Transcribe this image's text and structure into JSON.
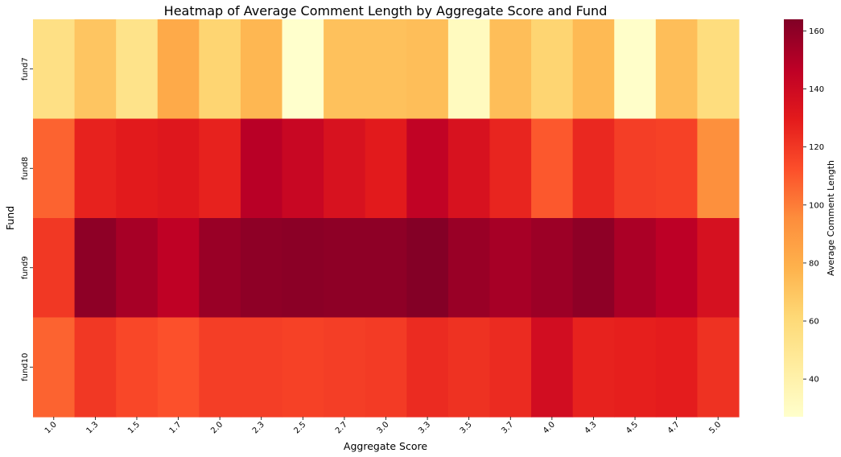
{
  "chart_data": {
    "type": "heatmap",
    "title": "Heatmap of Average Comment Length by Aggregate Score and Fund",
    "xlabel": "Aggregate Score",
    "ylabel": "Fund",
    "x_categories": [
      "1.0",
      "1.3",
      "1.5",
      "1.7",
      "2.0",
      "2.3",
      "2.5",
      "2.7",
      "3.0",
      "3.3",
      "3.5",
      "3.7",
      "4.0",
      "4.3",
      "4.5",
      "4.7",
      "5.0"
    ],
    "y_categories": [
      "fund7",
      "fund8",
      "fund9",
      "fund10"
    ],
    "values": [
      [
        55,
        70,
        53,
        82,
        63,
        76,
        27,
        72,
        72,
        73,
        32,
        73,
        63,
        75,
        28,
        73,
        58
      ],
      [
        107,
        127,
        130,
        132,
        127,
        148,
        142,
        135,
        130,
        145,
        135,
        126,
        110,
        125,
        118,
        117,
        94
      ],
      [
        120,
        160,
        153,
        146,
        157,
        160,
        161,
        160,
        160,
        163,
        157,
        153,
        156,
        160,
        152,
        147,
        136
      ],
      [
        107,
        120,
        115,
        112,
        118,
        118,
        117,
        118,
        119,
        124,
        122,
        124,
        138,
        127,
        128,
        129,
        122
      ]
    ],
    "colorbar": {
      "label": "Average Comment Length",
      "vmin": 27,
      "vmax": 164,
      "ticks": [
        40,
        60,
        80,
        100,
        120,
        140,
        160
      ],
      "colormap": "YlOrRd"
    }
  }
}
